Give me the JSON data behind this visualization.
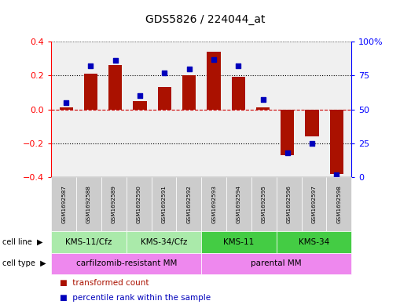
{
  "title": "GDS5826 / 224044_at",
  "samples": [
    "GSM1692587",
    "GSM1692588",
    "GSM1692589",
    "GSM1692590",
    "GSM1692591",
    "GSM1692592",
    "GSM1692593",
    "GSM1692594",
    "GSM1692595",
    "GSM1692596",
    "GSM1692597",
    "GSM1692598"
  ],
  "transformed_count": [
    0.01,
    0.21,
    0.26,
    0.05,
    0.13,
    0.2,
    0.34,
    0.19,
    0.01,
    -0.27,
    -0.16,
    -0.38
  ],
  "percentile_rank": [
    55,
    82,
    86,
    60,
    77,
    80,
    87,
    82,
    57,
    18,
    25,
    2
  ],
  "cell_line_groups": [
    {
      "label": "KMS-11/Cfz",
      "start": 0,
      "end": 3,
      "color": "#aaeaaa"
    },
    {
      "label": "KMS-34/Cfz",
      "start": 3,
      "end": 6,
      "color": "#aaeaaa"
    },
    {
      "label": "KMS-11",
      "start": 6,
      "end": 9,
      "color": "#44cc44"
    },
    {
      "label": "KMS-34",
      "start": 9,
      "end": 12,
      "color": "#44cc44"
    }
  ],
  "cell_type_groups": [
    {
      "label": "carfilzomib-resistant MM",
      "start": 0,
      "end": 6,
      "color": "#ee88ee"
    },
    {
      "label": "parental MM",
      "start": 6,
      "end": 12,
      "color": "#ee88ee"
    }
  ],
  "bar_color": "#aa1100",
  "dot_color": "#0000bb",
  "left_ylim": [
    -0.4,
    0.4
  ],
  "right_ylim": [
    0,
    100
  ],
  "left_yticks": [
    -0.4,
    -0.2,
    0.0,
    0.2,
    0.4
  ],
  "right_yticks": [
    0,
    25,
    50,
    75,
    100
  ],
  "right_yticklabels": [
    "0",
    "25",
    "50",
    "75",
    "100%"
  ],
  "bg_color": "#f0f0f0",
  "sample_box_color": "#cccccc",
  "dotted_line_color": "black",
  "zero_line_color": "#cc0000"
}
